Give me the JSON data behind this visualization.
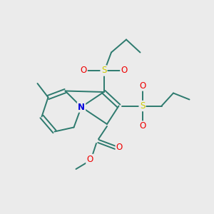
{
  "bg_color": "#ebebeb",
  "bond_color": "#2d7a6e",
  "n_color": "#0000dd",
  "o_color": "#ee0000",
  "s_color": "#cccc00",
  "line_width": 1.4,
  "figsize": [
    3.0,
    3.0
  ],
  "dpi": 100,
  "xlim": [
    0,
    10
  ],
  "ylim": [
    0,
    10
  ]
}
